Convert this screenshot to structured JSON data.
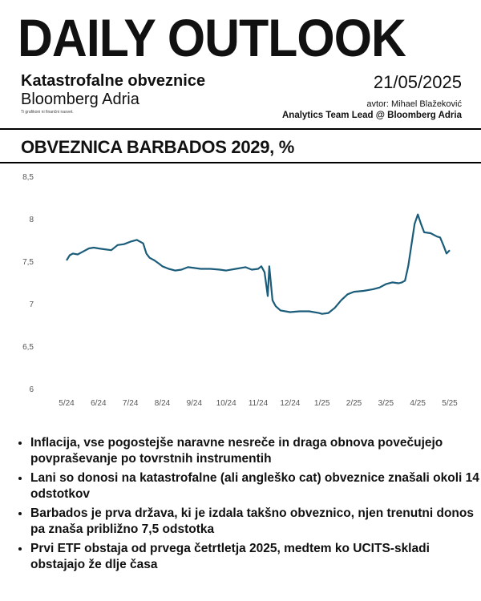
{
  "header": {
    "title": "DAILY OUTLOOK",
    "subtitle_line1": "Katastrofalne obveznice",
    "subtitle_line2": "Bloomberg Adria",
    "note": "Ti grafikoni ni finančni nasvet.",
    "date": "21/05/2025",
    "author": "avtor: Mihael Blažeković",
    "role": "Analytics Team Lead @ Bloomberg Adria"
  },
  "chart_data": {
    "type": "line",
    "title": "OBVEZNICA BARBADOS 2029, %",
    "xlabel": "",
    "ylabel": "",
    "ylim": [
      6,
      8.5
    ],
    "yticks": [
      "8,5",
      "8",
      "7,5",
      "7",
      "6,5",
      "6"
    ],
    "ytick_values": [
      8.5,
      8,
      7.5,
      7,
      6.5,
      6
    ],
    "xticks": [
      "5/24",
      "6/24",
      "7/24",
      "8/24",
      "9/24",
      "10/24",
      "11/24",
      "12/24",
      "1/25",
      "2/25",
      "3/25",
      "4/25",
      "5/25"
    ],
    "line_color": "#1b5c7a",
    "grid": false,
    "series": [
      {
        "name": "",
        "x": [
          0.0,
          0.1,
          0.2,
          0.35,
          0.5,
          0.7,
          0.85,
          1.0,
          1.2,
          1.4,
          1.6,
          1.8,
          2.0,
          2.2,
          2.4,
          2.5,
          2.6,
          2.75,
          2.9,
          3.0,
          3.2,
          3.4,
          3.6,
          3.8,
          4.0,
          4.2,
          4.5,
          4.8,
          5.0,
          5.3,
          5.6,
          5.8,
          6.0,
          6.1,
          6.2,
          6.3,
          6.35,
          6.45,
          6.55,
          6.7,
          7.0,
          7.3,
          7.6,
          7.9,
          8.0,
          8.2,
          8.4,
          8.6,
          8.8,
          9.0,
          9.3,
          9.6,
          9.8,
          10.0,
          10.2,
          10.4,
          10.5,
          10.6,
          10.7,
          10.8,
          10.9,
          11.0,
          11.1,
          11.2,
          11.4,
          11.6,
          11.7,
          11.8,
          11.9,
          12.0
        ],
        "values": [
          7.52,
          7.58,
          7.6,
          7.59,
          7.62,
          7.66,
          7.67,
          7.66,
          7.65,
          7.64,
          7.7,
          7.71,
          7.74,
          7.76,
          7.72,
          7.6,
          7.55,
          7.52,
          7.48,
          7.45,
          7.42,
          7.4,
          7.41,
          7.44,
          7.43,
          7.42,
          7.42,
          7.41,
          7.4,
          7.42,
          7.44,
          7.41,
          7.42,
          7.45,
          7.38,
          7.1,
          7.45,
          7.05,
          6.98,
          6.93,
          6.91,
          6.92,
          6.92,
          6.9,
          6.89,
          6.9,
          6.96,
          7.05,
          7.12,
          7.15,
          7.16,
          7.18,
          7.2,
          7.24,
          7.26,
          7.25,
          7.26,
          7.28,
          7.45,
          7.7,
          7.95,
          8.06,
          7.95,
          7.85,
          7.84,
          7.8,
          7.79,
          7.7,
          7.6,
          7.64
        ]
      }
    ]
  },
  "bullets": [
    "Inflacija, vse pogostejše naravne nesreče in draga obnova povečujejo povpraševanje po tovrstnih instrumentih",
    "Lani so donosi na katastrofalne (ali angleško cat) obveznice znašali okoli 14 odstotkov",
    "Barbados je prva država, ki je izdala takšno obveznico, njen trenutni donos pa znaša približno 7,5 odstotka",
    "Prvi ETF obstaja od prvega četrtletja 2025, medtem ko UCITS-skladi obstajajo že dlje časa"
  ]
}
